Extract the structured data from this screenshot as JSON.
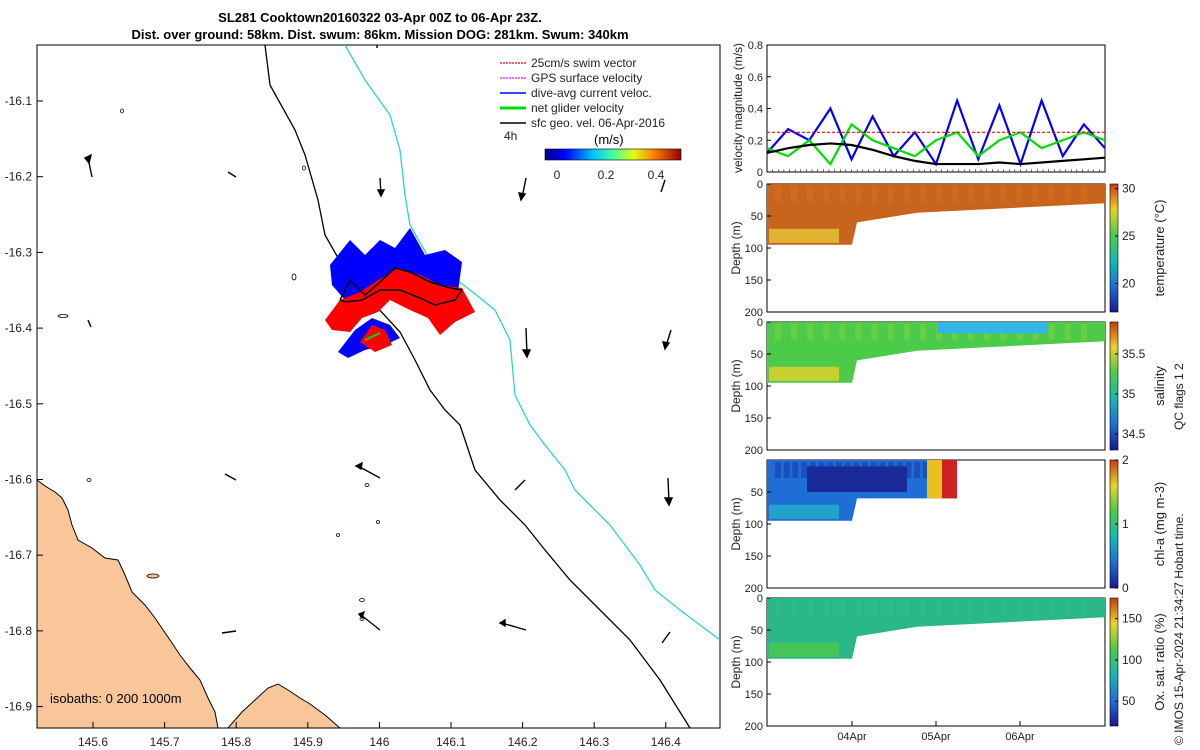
{
  "title": {
    "line1": "SL281 Cooktown20160322 03-Apr 00Z to 06-Apr 23Z.",
    "line2": "Dist. over ground: 58km. Dist. swum: 86km. Mission DOG: 281km. Swum: 340km"
  },
  "map": {
    "xticks": [
      "145.6",
      "145.7",
      "145.8",
      "145.9",
      "146",
      "146.1",
      "146.2",
      "146.3",
      "146.4"
    ],
    "yticks": [
      "-16.1",
      "-16.2",
      "-16.3",
      "-16.4",
      "-16.5",
      "-16.6",
      "-16.7",
      "-16.8",
      "-16.9"
    ],
    "isobaths_label": "isobaths: 0   200  1000m",
    "legend": [
      {
        "label": "25cm/s swim vector",
        "color": "#ff0000"
      },
      {
        "label": "GPS surface velocity",
        "color": "#ff00ff"
      },
      {
        "label": "dive-avg current veloc.",
        "color": "#0000ff"
      },
      {
        "label": "net glider velocity",
        "color": "#00dd00"
      },
      {
        "label": "sfc geo. vel. 06-Apr-2016",
        "color": "#000000"
      }
    ],
    "colorbar": {
      "time_label": "4h",
      "unit": "(m/s)",
      "ticks": [
        "0",
        "0.2",
        "0.4"
      ]
    }
  },
  "chart_data": [
    {
      "type": "line",
      "title": "",
      "xlabel": "",
      "ylabel": "velocity magnitude (m/s)",
      "ylim": [
        0,
        0.8
      ],
      "yticks": [
        "0",
        "0.2",
        "0.4",
        "0.6",
        "0.8"
      ],
      "x_days": [
        3.0,
        3.25,
        3.5,
        3.75,
        4.0,
        4.25,
        4.5,
        4.75,
        5.0,
        5.25,
        5.5,
        5.75,
        6.0,
        6.25,
        6.5,
        6.75,
        7.0
      ],
      "series": [
        {
          "name": "dive-avg current veloc.",
          "color": "#0000ff",
          "values": [
            0.12,
            0.27,
            0.2,
            0.4,
            0.08,
            0.35,
            0.1,
            0.25,
            0.05,
            0.45,
            0.08,
            0.42,
            0.05,
            0.45,
            0.1,
            0.3,
            0.15
          ]
        },
        {
          "name": "net glider velocity",
          "color": "#00dd00",
          "values": [
            0.15,
            0.1,
            0.2,
            0.05,
            0.3,
            0.2,
            0.15,
            0.1,
            0.2,
            0.25,
            0.1,
            0.2,
            0.25,
            0.15,
            0.2,
            0.25,
            0.2
          ]
        },
        {
          "name": "sfc geo. vel.",
          "color": "#000000",
          "values": [
            0.12,
            0.15,
            0.17,
            0.18,
            0.17,
            0.14,
            0.1,
            0.07,
            0.05,
            0.05,
            0.05,
            0.06,
            0.05,
            0.06,
            0.07,
            0.08,
            0.09
          ]
        },
        {
          "name": "25cm/s swim vector",
          "color": "#ff0000",
          "values": [
            0.25,
            0.25,
            0.25,
            0.25,
            0.25,
            0.25,
            0.25,
            0.25,
            0.25,
            0.25,
            0.25,
            0.25,
            0.25,
            0.25,
            0.25,
            0.25,
            0.25
          ]
        }
      ]
    },
    {
      "type": "heatmap",
      "variable": "temperature (°C)",
      "ylabel": "Depth (m)",
      "ylim": [
        0,
        200
      ],
      "yticks": [
        "0",
        "50",
        "100",
        "150",
        "200"
      ],
      "colorbar_ticks": [
        "20",
        "25",
        "30"
      ],
      "clim": [
        17,
        30.5
      ]
    },
    {
      "type": "heatmap",
      "variable": "salinity",
      "ylabel": "Depth (m)",
      "ylim": [
        0,
        200
      ],
      "yticks": [
        "0",
        "50",
        "100",
        "150",
        "200"
      ],
      "colorbar_ticks": [
        "34.5",
        "35",
        "35.5"
      ],
      "clim": [
        34.3,
        35.9
      ]
    },
    {
      "type": "heatmap",
      "variable": "chl-a (mg m-3)",
      "ylabel": "Depth (m)",
      "ylim": [
        0,
        200
      ],
      "yticks": [
        "50",
        "100",
        "150",
        "200"
      ],
      "colorbar_ticks": [
        "0",
        "1",
        "2"
      ],
      "clim": [
        0,
        2
      ]
    },
    {
      "type": "heatmap",
      "variable": "Ox. sat. ratio (%)",
      "ylabel": "Depth (m)",
      "ylim": [
        0,
        200
      ],
      "yticks": [
        "0",
        "50",
        "100",
        "150",
        "200"
      ],
      "colorbar_ticks": [
        "50",
        "100",
        "150"
      ],
      "clim": [
        20,
        175
      ]
    }
  ],
  "time_axis": {
    "ticks": [
      "04Apr",
      "05Apr",
      "06Apr"
    ]
  },
  "salinity_extra_label": "QC flags 1  2",
  "footer": "© IMOS 15-Apr-2024 21:34:27 Hobart time."
}
